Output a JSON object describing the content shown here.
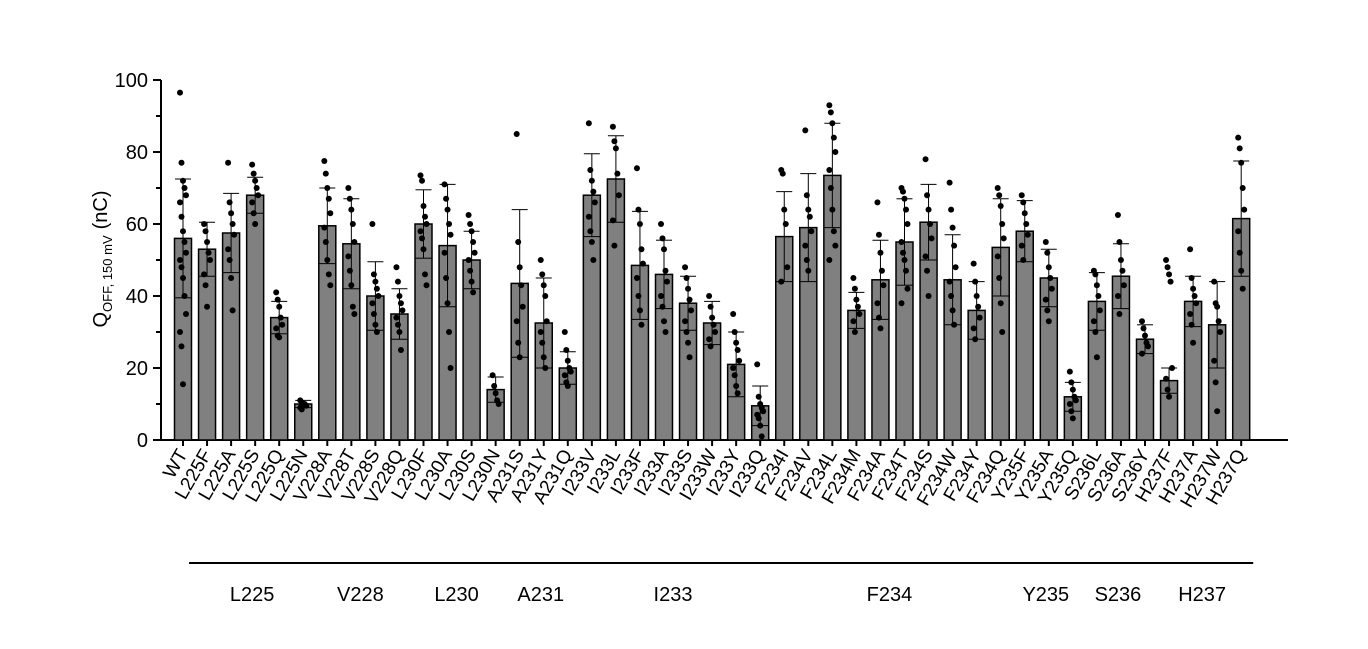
{
  "chart_data": {
    "type": "bar",
    "ylabel_main": "Q",
    "ylabel_sub": "OFF, 150 mV",
    "ylabel_unit": "(nC)",
    "ylim": [
      0,
      100
    ],
    "yticks": [
      "0",
      "20",
      "40",
      "60",
      "80",
      "100"
    ],
    "bar_color": "#808080",
    "categories": [
      "WT",
      "L225F",
      "L225A",
      "L225S",
      "L225Q",
      "L225N",
      "V228A",
      "V228T",
      "V228S",
      "V228Q",
      "L230F",
      "L230A",
      "L230S",
      "L230N",
      "A231S",
      "A231Y",
      "A231Q",
      "I233V",
      "I233L",
      "I233F",
      "I233A",
      "I233S",
      "I233W",
      "I233Y",
      "I233Q",
      "F234I",
      "F234V",
      "F234L",
      "F234M",
      "F234A",
      "F234T",
      "F234S",
      "F234W",
      "F234Y",
      "F234Q",
      "Y235F",
      "Y235A",
      "Y235Q",
      "S236L",
      "S236A",
      "S236Y",
      "H237F",
      "H237A",
      "H237W",
      "H237Q"
    ],
    "values": [
      56,
      53,
      57.5,
      68,
      34,
      10,
      59.5,
      54.5,
      40,
      35,
      60,
      54,
      50,
      14,
      43.5,
      32.5,
      20,
      68,
      72.5,
      48.5,
      46,
      38,
      32.5,
      21,
      9.5,
      56.5,
      59,
      73.5,
      36,
      44.5,
      55,
      60.5,
      44.5,
      36,
      53.5,
      58,
      45,
      12,
      38.5,
      45.5,
      28,
      16.5,
      38.5,
      32,
      61.5
    ],
    "sd": [
      16.5,
      7.5,
      11,
      5,
      4.5,
      1,
      10.5,
      12.5,
      9.5,
      7,
      9.5,
      17,
      8,
      3.5,
      20.5,
      12.5,
      4.5,
      11.5,
      12,
      15,
      9.5,
      7.5,
      6,
      9,
      5.5,
      12.5,
      15,
      14.5,
      5,
      11,
      12,
      10.5,
      12.5,
      8,
      13.5,
      8.5,
      8,
      4,
      8,
      9,
      4,
      3.5,
      7,
      12,
      16
    ],
    "points": [
      [
        96.5,
        77,
        72,
        70,
        68,
        66,
        62,
        58,
        55,
        52,
        50,
        48,
        45,
        40,
        35,
        30,
        26,
        15.5
      ],
      [
        60,
        58,
        55,
        52,
        50,
        46,
        43,
        37
      ],
      [
        77,
        66,
        63,
        60,
        57,
        53,
        50,
        45,
        36
      ],
      [
        76.5,
        74,
        72,
        70,
        68,
        66,
        63,
        60
      ],
      [
        41,
        39,
        37,
        34,
        32,
        31,
        29,
        28.5
      ],
      [
        11,
        10.5,
        10,
        10,
        9.5,
        9,
        8.5
      ],
      [
        77.5,
        74,
        70,
        67,
        63,
        59,
        55,
        50,
        46,
        43
      ],
      [
        70,
        67,
        64,
        60,
        55,
        51,
        47,
        43,
        37,
        35
      ],
      [
        60,
        46,
        44,
        42,
        40,
        38,
        35,
        32,
        30
      ],
      [
        48,
        44,
        40,
        38,
        36,
        34,
        32,
        30,
        25
      ],
      [
        73.5,
        72,
        65,
        62,
        60,
        58,
        56,
        53,
        46,
        43
      ],
      [
        71,
        67,
        64,
        60,
        57,
        52,
        45,
        38,
        30,
        20
      ],
      [
        62.5,
        60,
        58,
        55,
        52,
        50,
        47,
        44,
        41
      ],
      [
        18,
        15,
        13,
        11,
        10
      ],
      [
        85,
        55,
        48,
        43,
        37,
        33,
        27,
        23
      ],
      [
        50,
        46,
        43,
        40,
        33,
        30,
        27,
        23,
        20
      ],
      [
        30,
        25,
        22,
        20,
        19,
        18,
        16,
        15
      ],
      [
        88,
        75,
        72,
        69,
        66,
        62,
        58,
        55,
        50
      ],
      [
        87,
        83,
        81,
        74,
        68,
        61,
        54
      ],
      [
        75.5,
        64,
        60,
        53,
        49,
        45,
        40,
        36,
        32
      ],
      [
        60,
        56,
        53,
        47,
        44,
        40,
        37,
        33,
        30
      ],
      [
        48,
        45,
        42,
        39,
        36,
        33,
        30,
        27,
        23
      ],
      [
        40,
        37,
        34,
        32,
        30,
        28,
        26
      ],
      [
        35,
        30,
        27,
        25,
        22,
        20,
        18,
        15,
        13
      ],
      [
        21,
        12,
        10,
        9,
        8,
        7,
        6,
        4,
        1
      ],
      [
        75,
        74,
        64,
        60,
        48,
        44
      ],
      [
        86,
        68,
        64,
        62,
        58,
        54,
        50,
        47
      ],
      [
        93,
        91,
        88,
        84,
        80,
        75,
        70,
        64,
        58,
        54,
        50
      ],
      [
        45,
        42,
        39,
        37,
        35,
        33,
        30
      ],
      [
        66,
        57,
        52,
        47,
        43,
        38,
        34,
        31
      ],
      [
        70,
        69,
        67,
        64,
        60,
        55,
        52,
        50,
        47,
        42,
        38
      ],
      [
        78,
        68,
        64,
        60,
        56,
        51,
        47,
        40
      ],
      [
        71.5,
        64,
        59,
        54,
        48,
        44,
        40,
        36,
        32
      ],
      [
        49,
        44,
        40,
        37,
        34,
        31,
        28
      ],
      [
        70,
        68,
        65,
        60,
        56,
        51,
        45,
        38,
        30
      ],
      [
        68,
        66,
        63,
        60,
        57,
        54,
        50
      ],
      [
        55,
        52,
        48,
        45,
        42,
        39,
        36,
        33
      ],
      [
        19,
        16,
        14,
        12,
        11,
        10,
        8,
        6
      ],
      [
        47,
        46,
        43,
        40,
        36,
        33,
        30,
        23
      ],
      [
        62.5,
        55,
        50,
        47,
        43,
        40,
        35
      ],
      [
        33,
        31,
        29,
        27,
        26,
        24
      ],
      [
        50,
        48,
        46,
        44,
        20,
        17,
        14,
        12
      ],
      [
        53,
        45,
        42,
        40,
        38,
        35,
        32,
        27
      ],
      [
        44,
        38,
        37,
        33,
        30,
        22,
        16,
        8
      ],
      [
        84,
        81,
        77,
        70,
        64,
        58,
        52,
        47,
        42
      ]
    ],
    "groups": [
      {
        "label": "L225",
        "from": 1,
        "to": 5
      },
      {
        "label": "V228",
        "from": 6,
        "to": 9
      },
      {
        "label": "L230",
        "from": 10,
        "to": 13
      },
      {
        "label": "A231",
        "from": 14,
        "to": 16
      },
      {
        "label": "I233",
        "from": 17,
        "to": 24
      },
      {
        "label": "F234",
        "from": 25,
        "to": 34
      },
      {
        "label": "Y235",
        "from": 35,
        "to": 37
      },
      {
        "label": "S236",
        "from": 38,
        "to": 40
      },
      {
        "label": "H237",
        "from": 41,
        "to": 44
      }
    ]
  }
}
